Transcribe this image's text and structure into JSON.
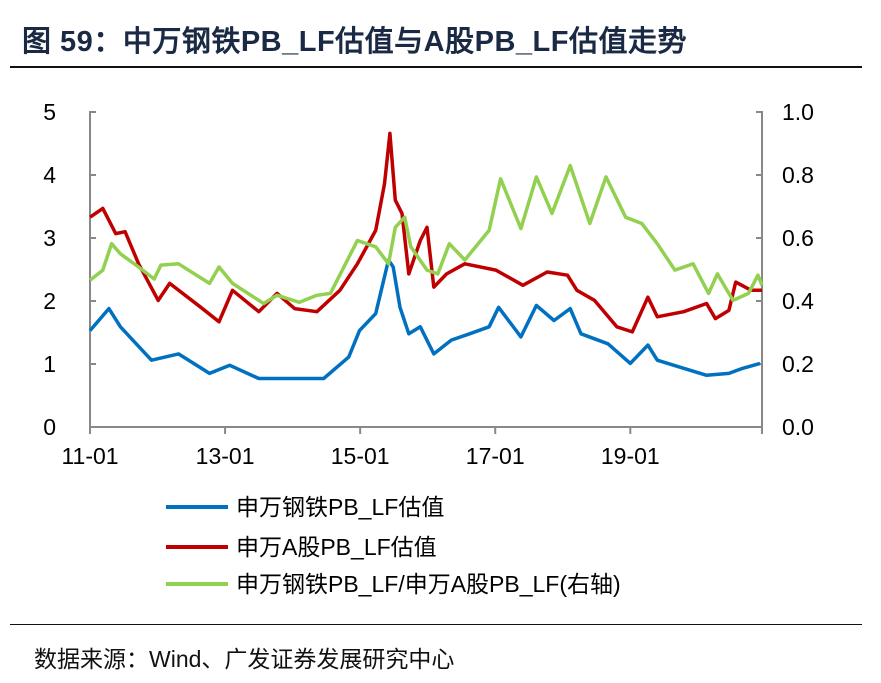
{
  "title": "图 59：中万钢铁PB_LF估值与A股PB_LF估值走势",
  "source": "数据来源：Wind、广发证券发展研究中心",
  "colors": {
    "blue": "#0070c0",
    "red": "#c00000",
    "green": "#92d050",
    "axis": "#888888"
  },
  "chart_data": {
    "type": "line",
    "title": "图 59：中万钢铁PB_LF估值与A股PB_LF估值走势",
    "x_unit": "decimal year",
    "xlim": [
      2011.0,
      2020.95
    ],
    "x_ticks": [
      {
        "value": 2011,
        "label": "11-01"
      },
      {
        "value": 2013,
        "label": "13-01"
      },
      {
        "value": 2015,
        "label": "15-01"
      },
      {
        "value": 2017,
        "label": "17-01"
      },
      {
        "value": 2019,
        "label": "19-01"
      }
    ],
    "ylim_left": [
      0,
      5
    ],
    "y_ticks_left": [
      "0",
      "1",
      "2",
      "3",
      "4",
      "5"
    ],
    "ylim_right": [
      0,
      1.0
    ],
    "y_ticks_right": [
      "0.0",
      "0.2",
      "0.4",
      "0.6",
      "0.8",
      "1.0"
    ],
    "grid": false,
    "legend_position": "bottom",
    "series": [
      {
        "name": "申万钢铁PB_LF估值",
        "axis": "left",
        "color": "#0070c0",
        "x": [
          2011.0,
          2011.28,
          2011.45,
          2011.91,
          2012.31,
          2012.77,
          2013.07,
          2013.5,
          2014.03,
          2014.46,
          2014.83,
          2014.99,
          2015.23,
          2015.42,
          2015.49,
          2015.59,
          2015.72,
          2015.89,
          2016.09,
          2016.35,
          2016.62,
          2016.91,
          2017.05,
          2017.38,
          2017.61,
          2017.87,
          2018.11,
          2018.27,
          2018.67,
          2019.0,
          2019.26,
          2019.4,
          2019.73,
          2020.13,
          2020.46,
          2020.66,
          2020.92
        ],
        "y": [
          1.53,
          1.88,
          1.59,
          1.06,
          1.16,
          0.85,
          0.98,
          0.77,
          0.77,
          0.77,
          1.11,
          1.53,
          1.8,
          2.65,
          2.54,
          1.9,
          1.48,
          1.59,
          1.16,
          1.38,
          1.48,
          1.59,
          1.9,
          1.43,
          1.93,
          1.69,
          1.88,
          1.48,
          1.32,
          1.01,
          1.3,
          1.06,
          0.95,
          0.82,
          0.85,
          0.93,
          1.01
        ]
      },
      {
        "name": "申万A股PB_LF估值",
        "axis": "left",
        "color": "#c00000",
        "x": [
          2011.0,
          2011.19,
          2011.38,
          2011.52,
          2011.72,
          2012.01,
          2012.18,
          2012.64,
          2012.91,
          2013.11,
          2013.5,
          2013.77,
          2014.03,
          2014.36,
          2014.7,
          2014.96,
          2015.23,
          2015.36,
          2015.44,
          2015.52,
          2015.62,
          2015.72,
          2015.89,
          2015.99,
          2016.09,
          2016.28,
          2016.55,
          2017.01,
          2017.41,
          2017.77,
          2018.07,
          2018.21,
          2018.47,
          2018.8,
          2019.03,
          2019.26,
          2019.4,
          2019.79,
          2020.13,
          2020.26,
          2020.46,
          2020.56,
          2020.79,
          2020.95
        ],
        "y": [
          3.33,
          3.47,
          3.07,
          3.1,
          2.59,
          2.01,
          2.28,
          1.9,
          1.67,
          2.17,
          1.83,
          2.12,
          1.88,
          1.83,
          2.17,
          2.59,
          3.12,
          3.86,
          4.66,
          3.6,
          3.39,
          2.43,
          2.96,
          3.17,
          2.22,
          2.43,
          2.59,
          2.49,
          2.25,
          2.46,
          2.41,
          2.17,
          2.01,
          1.59,
          1.51,
          2.06,
          1.75,
          1.83,
          1.96,
          1.72,
          1.85,
          2.3,
          2.17,
          2.17
        ]
      },
      {
        "name": "申万钢铁PB_LF/申万A股PB_LF(右轴)",
        "axis": "right",
        "color": "#92d050",
        "x": [
          2011.0,
          2011.19,
          2011.32,
          2011.45,
          2011.72,
          2011.95,
          2012.05,
          2012.31,
          2012.77,
          2012.91,
          2013.11,
          2013.57,
          2013.77,
          2014.1,
          2014.36,
          2014.56,
          2014.96,
          2015.23,
          2015.42,
          2015.52,
          2015.66,
          2015.75,
          2015.99,
          2016.15,
          2016.32,
          2016.55,
          2016.91,
          2017.08,
          2017.38,
          2017.61,
          2017.84,
          2018.11,
          2018.4,
          2018.64,
          2018.93,
          2019.17,
          2019.4,
          2019.66,
          2019.93,
          2020.16,
          2020.29,
          2020.52,
          2020.75,
          2020.89,
          2020.95
        ],
        "y": [
          0.466,
          0.498,
          0.582,
          0.55,
          0.508,
          0.47,
          0.514,
          0.518,
          0.456,
          0.508,
          0.456,
          0.392,
          0.418,
          0.396,
          0.418,
          0.424,
          0.592,
          0.572,
          0.518,
          0.634,
          0.666,
          0.572,
          0.498,
          0.486,
          0.582,
          0.53,
          0.624,
          0.788,
          0.63,
          0.794,
          0.678,
          0.83,
          0.646,
          0.794,
          0.666,
          0.646,
          0.582,
          0.498,
          0.518,
          0.424,
          0.486,
          0.402,
          0.424,
          0.482,
          0.45
        ]
      }
    ]
  }
}
